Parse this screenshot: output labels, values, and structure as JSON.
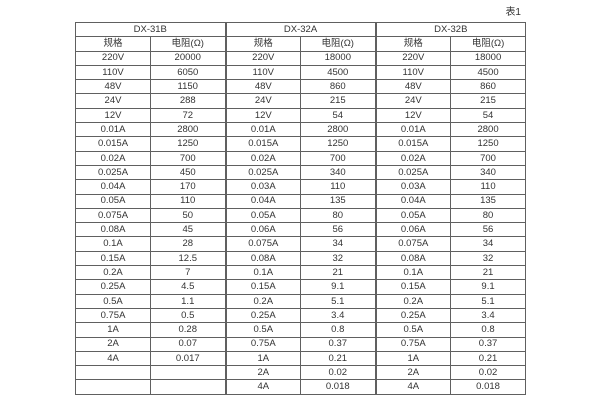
{
  "page": {
    "caption": "表1"
  },
  "table": {
    "groups": [
      "DX-31B",
      "DX-32A",
      "DX-32B"
    ],
    "col_headers": {
      "spec": "规格",
      "resistance": "电阻(Ω)"
    },
    "rows": [
      [
        "220V",
        "20000",
        "220V",
        "18000",
        "220V",
        "18000"
      ],
      [
        "110V",
        "6050",
        "110V",
        "4500",
        "110V",
        "4500"
      ],
      [
        "48V",
        "1150",
        "48V",
        "860",
        "48V",
        "860"
      ],
      [
        "24V",
        "288",
        "24V",
        "215",
        "24V",
        "215"
      ],
      [
        "12V",
        "72",
        "12V",
        "54",
        "12V",
        "54"
      ],
      [
        "0.01A",
        "2800",
        "0.01A",
        "2800",
        "0.01A",
        "2800"
      ],
      [
        "0.015A",
        "1250",
        "0.015A",
        "1250",
        "0.015A",
        "1250"
      ],
      [
        "0.02A",
        "700",
        "0.02A",
        "700",
        "0.02A",
        "700"
      ],
      [
        "0.025A",
        "450",
        "0.025A",
        "340",
        "0.025A",
        "340"
      ],
      [
        "0.04A",
        "170",
        "0.03A",
        "110",
        "0.03A",
        "110"
      ],
      [
        "0.05A",
        "110",
        "0.04A",
        "135",
        "0.04A",
        "135"
      ],
      [
        "0.075A",
        "50",
        "0.05A",
        "80",
        "0.05A",
        "80"
      ],
      [
        "0.08A",
        "45",
        "0.06A",
        "56",
        "0.06A",
        "56"
      ],
      [
        "0.1A",
        "28",
        "0.075A",
        "34",
        "0.075A",
        "34"
      ],
      [
        "0.15A",
        "12.5",
        "0.08A",
        "32",
        "0.08A",
        "32"
      ],
      [
        "0.2A",
        "7",
        "0.1A",
        "21",
        "0.1A",
        "21"
      ],
      [
        "0.25A",
        "4.5",
        "0.15A",
        "9.1",
        "0.15A",
        "9.1"
      ],
      [
        "0.5A",
        "1.1",
        "0.2A",
        "5.1",
        "0.2A",
        "5.1"
      ],
      [
        "0.75A",
        "0.5",
        "0.25A",
        "3.4",
        "0.25A",
        "3.4"
      ],
      [
        "1A",
        "0.28",
        "0.5A",
        "0.8",
        "0.5A",
        "0.8"
      ],
      [
        "2A",
        "0.07",
        "0.75A",
        "0.37",
        "0.75A",
        "0.37"
      ],
      [
        "4A",
        "0.017",
        "1A",
        "0.21",
        "1A",
        "0.21"
      ],
      [
        "",
        "",
        "2A",
        "0.02",
        "2A",
        "0.02"
      ],
      [
        "",
        "",
        "4A",
        "0.018",
        "4A",
        "0.018"
      ]
    ]
  }
}
